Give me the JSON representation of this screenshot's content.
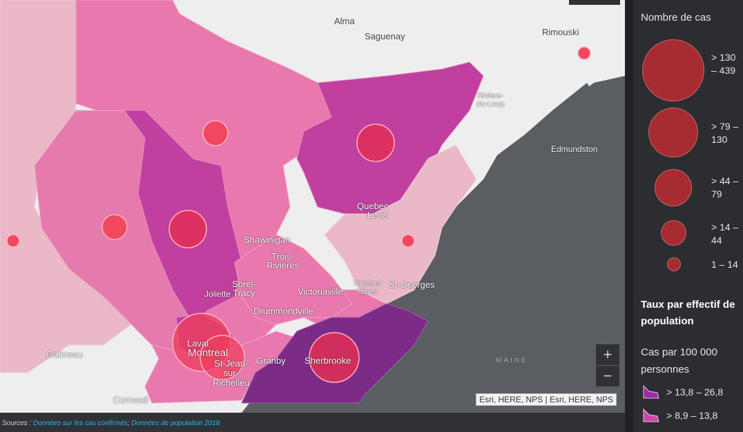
{
  "map": {
    "cities": {
      "alma": "Alma",
      "saguenay": "Saguenay",
      "rimouski": "Rimouski",
      "riviere_du_loup": "Riviere-\ndu-Loup",
      "edmundston": "Edmundston",
      "quebec": "Quebec",
      "levis": "Levis",
      "shawinigan": "Shawinigan",
      "trois_rivieres": "Trois-\nRivieres",
      "sorel_tracy": "Sorel-\nTracy",
      "joliette": "Joliette",
      "victoriaville": "Victoriaville",
      "thetford_mines": "Thetford\nMines",
      "st_georges": "St-Georges",
      "drummondville": "Drummondville",
      "laval": "Laval",
      "montreal": "Montreal",
      "st_jean": "St-Jean-\nsur-\nRichelieu",
      "granby": "Granby",
      "sherbrooke": "Sherbrooke",
      "gatineau": "Gatineau",
      "cornwall": "Cornwall"
    },
    "maine_label": "MAINE",
    "attribution": "Esri, HERE, NPS | Esri, HERE, NPS",
    "zoom_in_label": "+",
    "zoom_out_label": "−"
  },
  "footer": {
    "sources_prefix": "Sources : ",
    "link1": "Données sur les cas confirmés",
    "separator": "; ",
    "link2": "Données de population 2018"
  },
  "legend": {
    "cases_title": "Nombre de cas",
    "classes": [
      {
        "label": "> 130 – 439"
      },
      {
        "label": "> 79 – 130"
      },
      {
        "label": "> 44 – 79"
      },
      {
        "label": "> 14 – 44"
      },
      {
        "label": "1 – 14"
      }
    ],
    "rate_title": "Taux par effectif de population",
    "rate_subtitle": "Cas par 100 000 personnes",
    "rate_classes": [
      {
        "label": "> 13,8 – 26,8",
        "color": "#9b2fa3"
      },
      {
        "label": "> 8,9 – 13,8",
        "color": "#cc46aa"
      }
    ]
  },
  "colors": {
    "water": "#5a5d61",
    "land_light": "#eeeeee",
    "region_light": "#ebb8c7",
    "region_medium": "#e878ad",
    "region_strong": "#c13f9e",
    "region_darkest": "#7c2b86",
    "case_circle": "#ee3e5c"
  }
}
